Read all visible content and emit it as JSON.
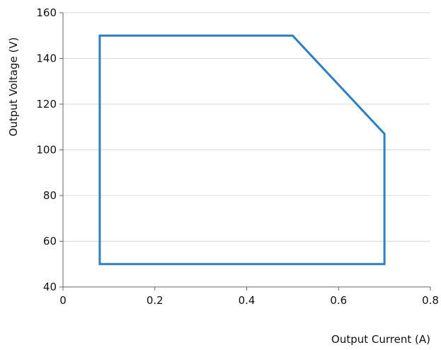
{
  "chart_data": {
    "type": "line",
    "title": "",
    "xlabel": "Output Current (A)",
    "ylabel": "Output Voltage (V)",
    "xlim": [
      0,
      0.8
    ],
    "ylim": [
      40,
      160
    ],
    "x_ticks": [
      0,
      0.2,
      0.4,
      0.6,
      0.8
    ],
    "x_tick_labels": [
      "0",
      "0.2",
      "0.4",
      "0.6",
      "0.8"
    ],
    "y_ticks": [
      40,
      60,
      80,
      100,
      120,
      140,
      160
    ],
    "y_tick_labels": [
      "40",
      "60",
      "80",
      "100",
      "120",
      "140",
      "160"
    ],
    "grid": true,
    "legend": "none",
    "series": [
      {
        "x": [
          0.08,
          0.5,
          0.7,
          0.7,
          0.08,
          0.08
        ],
        "y": [
          150,
          150,
          107,
          50,
          50,
          150
        ],
        "color": "#2f7fc1"
      }
    ],
    "colors": {
      "series": "#2f7fc1",
      "grid": "#d9d9d9",
      "axis": "#666666",
      "text": "#111111"
    }
  }
}
